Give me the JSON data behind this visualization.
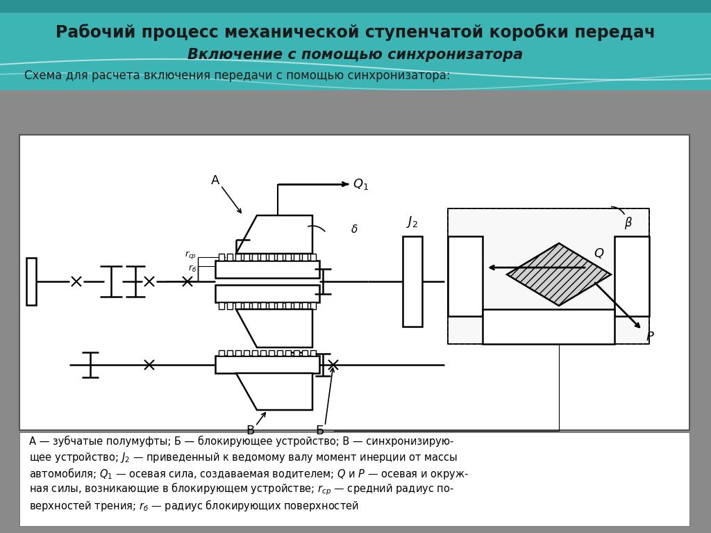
{
  "title1": "Рабочий процесс механической ступенчатой коробки передач",
  "title2": "Включение с помощью синхронизатора",
  "subtitle": "Схема для расчета включения передачи с помощью синхронизатора:",
  "bg_teal": "#4db8b8",
  "bg_gray": "#8a8a8a",
  "text_dark": "#1a1a2e",
  "diagram_lw": 1.5
}
